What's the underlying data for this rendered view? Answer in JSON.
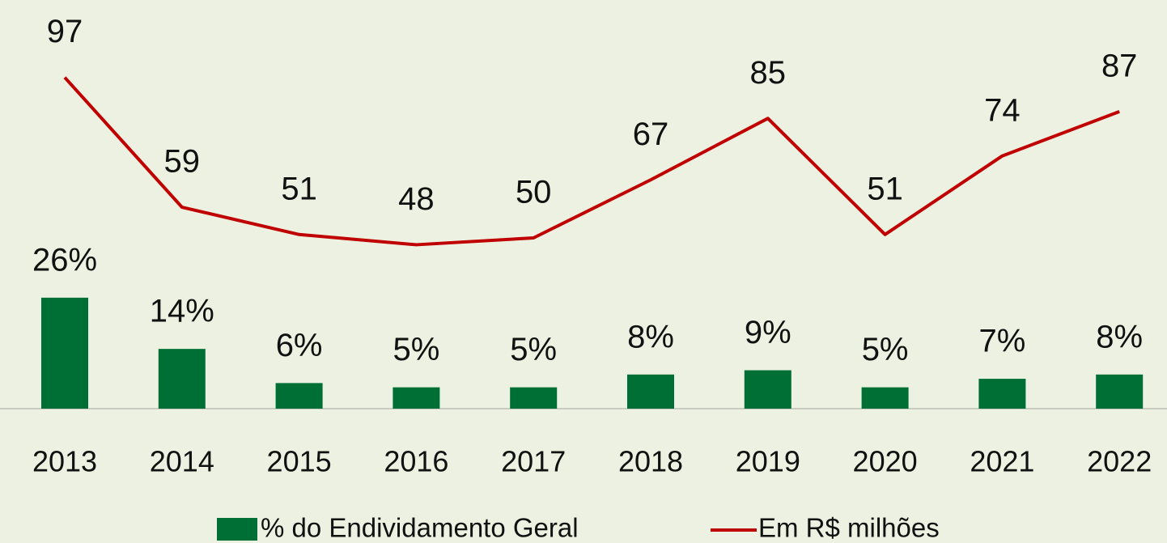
{
  "chart_data": {
    "type": "bar_line",
    "categories": [
      "2013",
      "2014",
      "2015",
      "2016",
      "2017",
      "2018",
      "2019",
      "2020",
      "2021",
      "2022"
    ],
    "series": [
      {
        "name": "% do Endividamento Geral",
        "type": "bar",
        "color": "#006f35",
        "axis": "y",
        "values": [
          26,
          14,
          6,
          5,
          5,
          8,
          9,
          5,
          7,
          8
        ],
        "value_labels": [
          "26%",
          "14%",
          "6%",
          "5%",
          "5%",
          "8%",
          "9%",
          "5%",
          "7%",
          "8%"
        ]
      },
      {
        "name": "Em R$ milhões",
        "type": "line",
        "color": "#c00000",
        "axis": "y2",
        "values": [
          97,
          59,
          51,
          48,
          50,
          67,
          85,
          51,
          74,
          87
        ]
      }
    ],
    "ylim": [
      0,
      80
    ],
    "y2lim": [
      0,
      100
    ],
    "legend": "bottom"
  }
}
